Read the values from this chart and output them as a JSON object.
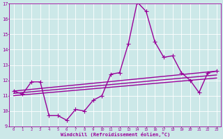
{
  "xlabel": "Windchill (Refroidissement éolien,°C)",
  "x": [
    0,
    1,
    2,
    3,
    4,
    5,
    6,
    7,
    8,
    9,
    10,
    11,
    12,
    13,
    14,
    15,
    16,
    17,
    18,
    19,
    20,
    21,
    22,
    23
  ],
  "line_data": [
    11.3,
    11.1,
    11.9,
    11.9,
    9.7,
    9.7,
    9.4,
    10.1,
    10.0,
    10.7,
    11.0,
    12.4,
    12.5,
    14.4,
    17.1,
    16.5,
    14.5,
    13.5,
    13.6,
    12.5,
    12.0,
    11.2,
    12.5,
    12.6
  ],
  "trend1_x": [
    0,
    23
  ],
  "trend1_y": [
    11.3,
    12.6
  ],
  "trend2_x": [
    0,
    23
  ],
  "trend2_y": [
    11.15,
    12.35
  ],
  "trend3_x": [
    0,
    23
  ],
  "trend3_y": [
    11.0,
    12.15
  ],
  "ylim": [
    9,
    17
  ],
  "xlim": [
    -0.5,
    23.5
  ],
  "yticks": [
    9,
    10,
    11,
    12,
    13,
    14,
    15,
    16,
    17
  ],
  "xticks": [
    0,
    1,
    2,
    3,
    4,
    5,
    6,
    7,
    8,
    9,
    10,
    11,
    12,
    13,
    14,
    15,
    16,
    17,
    18,
    19,
    20,
    21,
    22,
    23
  ],
  "bg_color": "#cce8e8",
  "grid_color": "#ffffff",
  "line_color": "#990099",
  "line_width": 1.0,
  "marker": "+",
  "marker_size": 4
}
